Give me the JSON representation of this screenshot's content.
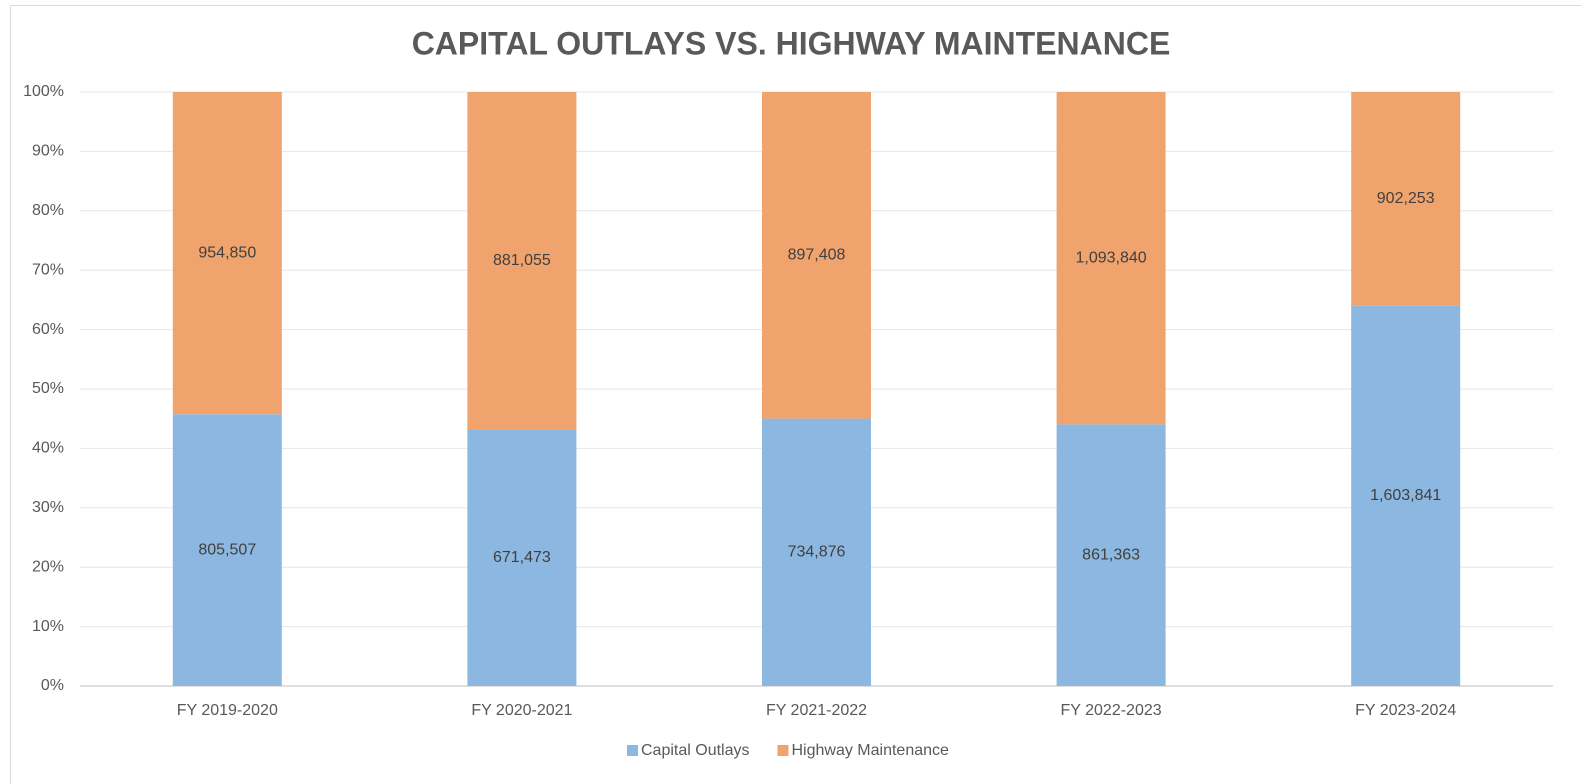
{
  "chart_data": {
    "type": "bar",
    "stacked": "percent",
    "title": "CAPITAL OUTLAYS VS. HIGHWAY MAINTENANCE",
    "categories": [
      "FY 2019-2020",
      "FY 2020-2021",
      "FY 2021-2022",
      "FY 2022-2023",
      "FY 2023-2024"
    ],
    "series": [
      {
        "name": "Capital Outlays",
        "color": "#8cb7e0",
        "values": [
          805507,
          671473,
          734876,
          861363,
          1603841
        ],
        "value_labels": [
          "805,507",
          "671,473",
          "734,876",
          "861,363",
          "1,603,841"
        ]
      },
      {
        "name": "Highway Maintenance",
        "color": "#f0a36c",
        "values": [
          954850,
          881055,
          897408,
          1093840,
          902253
        ],
        "value_labels": [
          "954,850",
          "881,055",
          "897,408",
          "1,093,840",
          "902,253"
        ]
      }
    ],
    "ylim": [
      0,
      100
    ],
    "yticks": [
      {
        "value": 0,
        "label": "0%"
      },
      {
        "value": 10,
        "label": "10%"
      },
      {
        "value": 20,
        "label": "20%"
      },
      {
        "value": 30,
        "label": "30%"
      },
      {
        "value": 40,
        "label": "40%"
      },
      {
        "value": 50,
        "label": "50%"
      },
      {
        "value": 60,
        "label": "60%"
      },
      {
        "value": 70,
        "label": "70%"
      },
      {
        "value": 80,
        "label": "80%"
      },
      {
        "value": 90,
        "label": "90%"
      },
      {
        "value": 100,
        "label": "100%"
      }
    ],
    "grid": true,
    "legend": "bottom"
  }
}
